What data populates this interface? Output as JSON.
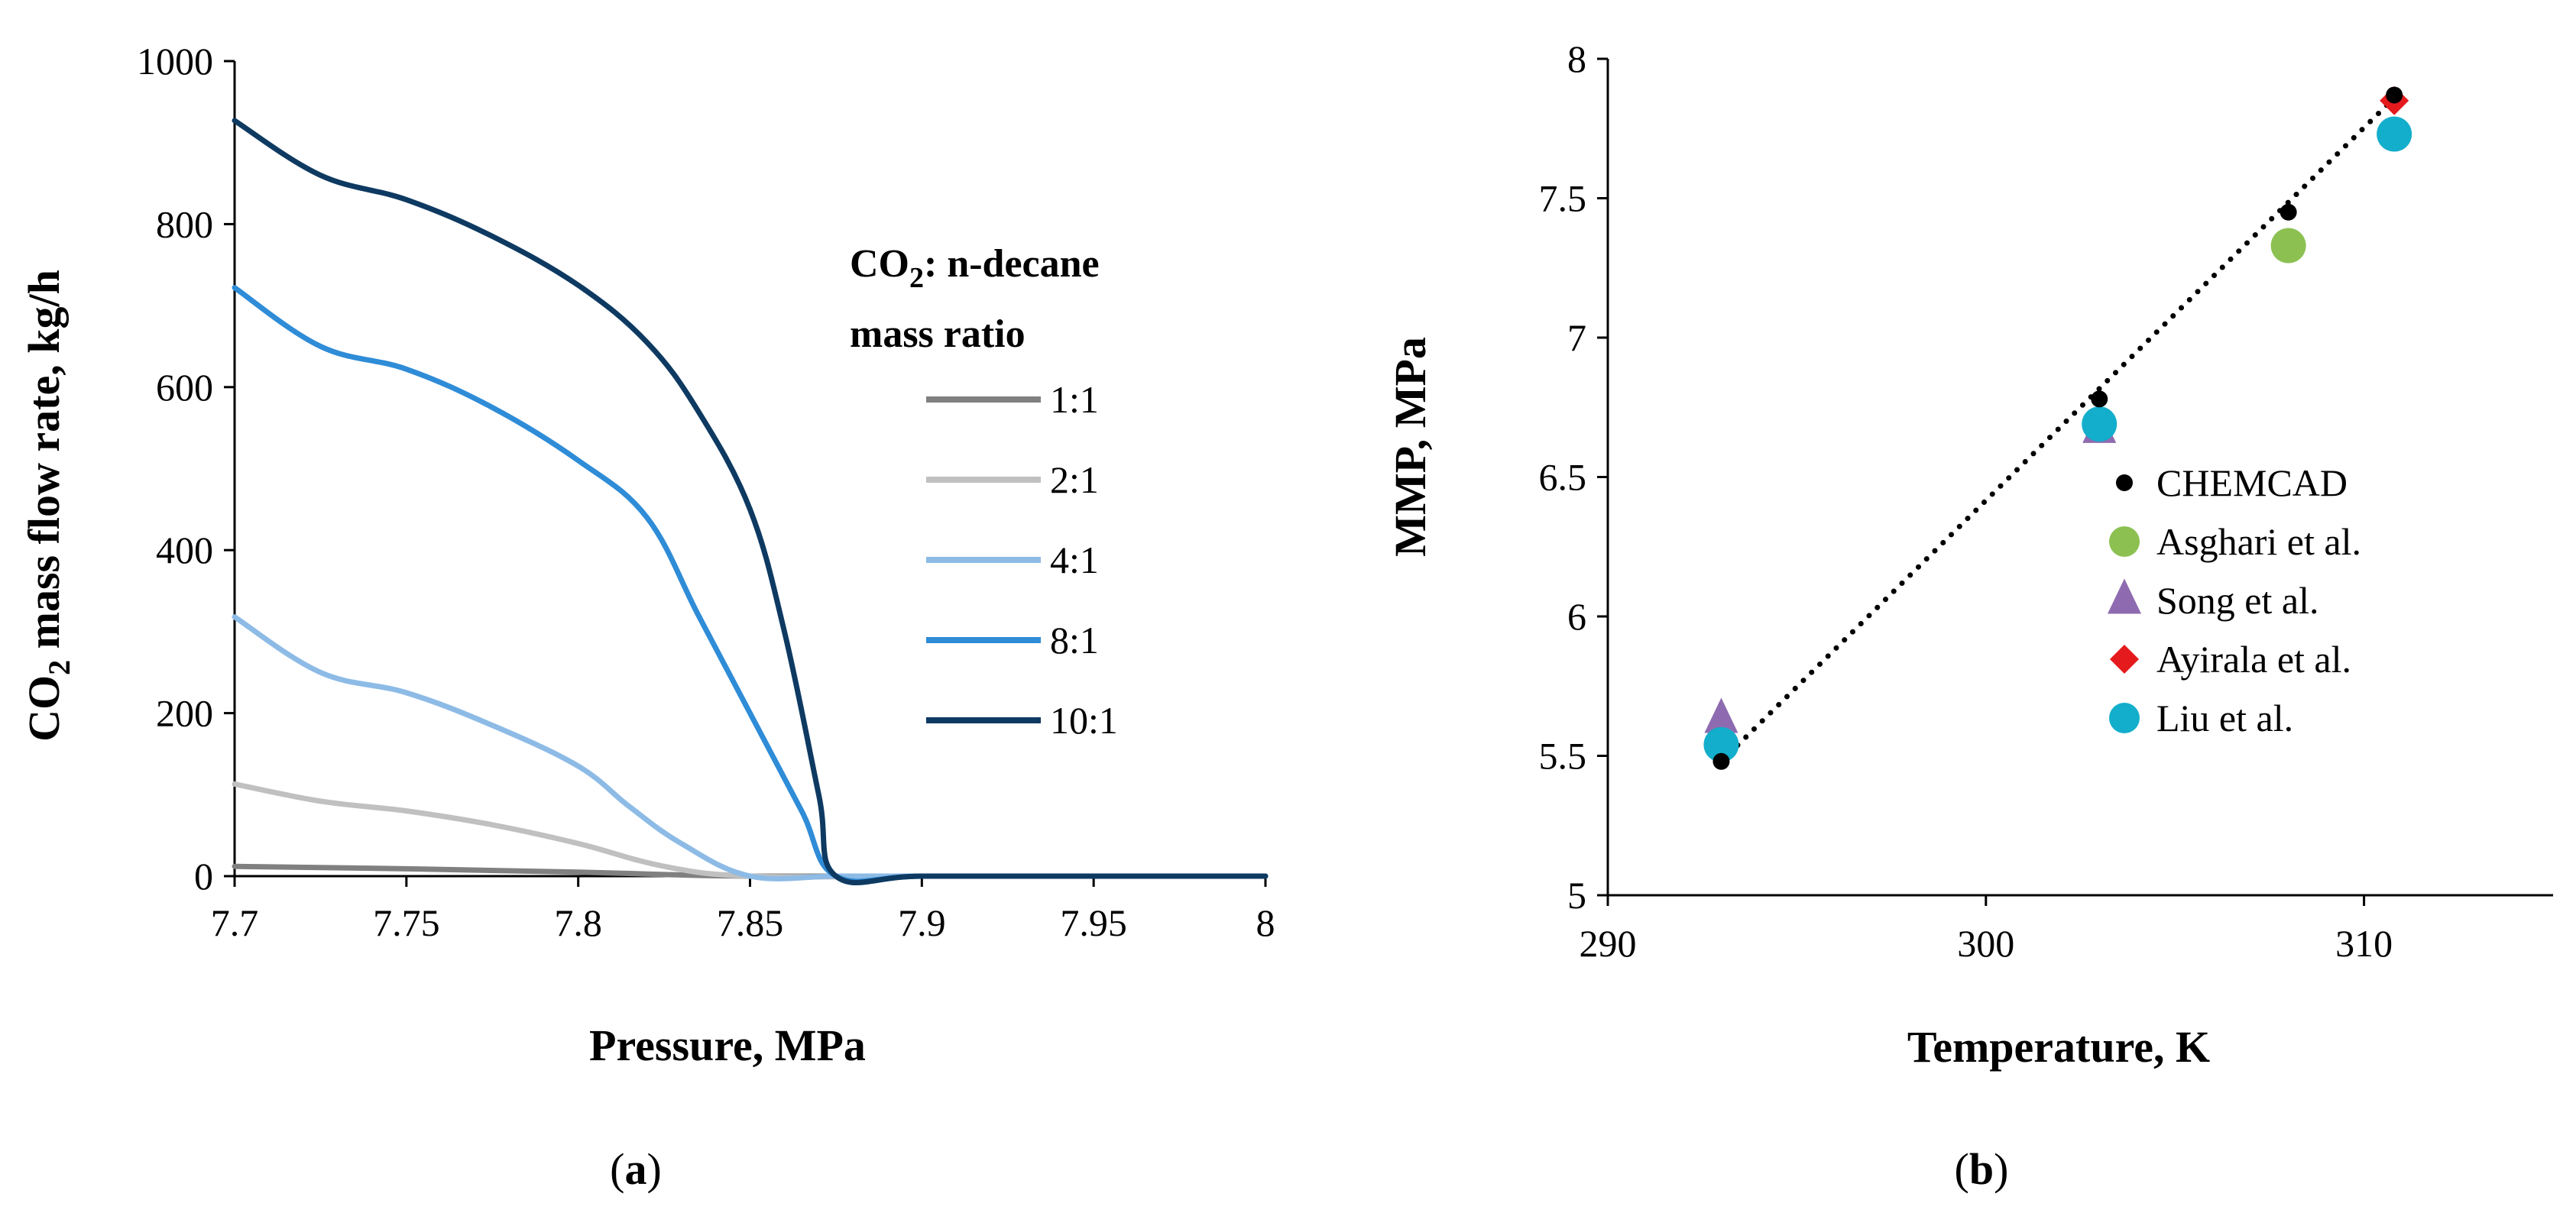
{
  "panels": {
    "a": "a",
    "b": "b"
  },
  "chart_data": [
    {
      "id": "a",
      "type": "line",
      "title": "",
      "xlabel": "Pressure, MPa",
      "ylabel": "CO2 mass flow rate, kg/h",
      "ylabel_parts": [
        "CO",
        "2",
        " mass flow rate, kg/h"
      ],
      "xlim": [
        7.7,
        8
      ],
      "ylim": [
        0,
        1000
      ],
      "xticks": [
        7.7,
        7.75,
        7.8,
        7.85,
        7.9,
        7.95,
        8
      ],
      "xtick_labels": [
        "7.7",
        "7.75",
        "7.8",
        "7.85",
        "7.9",
        "7.95",
        "8"
      ],
      "yticks": [
        0,
        200,
        400,
        600,
        800,
        1000
      ],
      "ytick_labels": [
        "0",
        "200",
        "400",
        "600",
        "800",
        "1000"
      ],
      "legend_title_parts": [
        "CO",
        "2",
        ": n-decane",
        "mass ratio"
      ],
      "legend_position": "right",
      "series": [
        {
          "name": "1:1",
          "color": "#808080",
          "x": [
            7.7,
            7.75,
            7.8,
            7.825,
            7.85,
            7.9,
            7.95,
            8
          ],
          "y": [
            12,
            9,
            5,
            2,
            0,
            0,
            0,
            0
          ]
        },
        {
          "name": "2:1",
          "color": "#c0c0c0",
          "x": [
            7.7,
            7.725,
            7.75,
            7.775,
            7.8,
            7.825,
            7.85,
            7.9,
            7.95,
            8
          ],
          "y": [
            113,
            92,
            80,
            63,
            40,
            12,
            0,
            0,
            0,
            0
          ]
        },
        {
          "name": "4:1",
          "color": "#8dbbe6",
          "x": [
            7.7,
            7.725,
            7.75,
            7.775,
            7.8,
            7.815,
            7.83,
            7.85,
            7.875,
            7.9,
            7.95,
            8
          ],
          "y": [
            318,
            250,
            225,
            185,
            135,
            85,
            40,
            0,
            0,
            0,
            0,
            0
          ]
        },
        {
          "name": "8:1",
          "color": "#2f8cd7",
          "x": [
            7.7,
            7.725,
            7.75,
            7.775,
            7.8,
            7.82,
            7.835,
            7.85,
            7.865,
            7.875,
            7.9,
            7.95,
            8
          ],
          "y": [
            722,
            650,
            622,
            575,
            510,
            440,
            320,
            200,
            80,
            0,
            0,
            0,
            0
          ]
        },
        {
          "name": "10:1",
          "color": "#0e3a62",
          "x": [
            7.7,
            7.725,
            7.75,
            7.775,
            7.8,
            7.82,
            7.835,
            7.85,
            7.86,
            7.87,
            7.875,
            7.9,
            7.95,
            8
          ],
          "y": [
            927,
            860,
            830,
            785,
            725,
            655,
            570,
            450,
            300,
            100,
            0,
            0,
            0,
            0
          ]
        }
      ]
    },
    {
      "id": "b",
      "type": "scatter",
      "title": "",
      "xlabel": "Temperature, K",
      "ylabel": "MMP, MPa",
      "xlim": [
        290,
        315
      ],
      "ylim": [
        5,
        8
      ],
      "xticks": [
        290,
        300,
        310
      ],
      "xtick_labels": [
        "290",
        "300",
        "310"
      ],
      "yticks": [
        5,
        5.5,
        6,
        6.5,
        7,
        7.5,
        8
      ],
      "ytick_labels": [
        "5",
        "5.5",
        "6",
        "6.5",
        "7",
        "7.5",
        "8"
      ],
      "legend_position": "right",
      "trendline": {
        "style": "dotted",
        "color": "#000000",
        "x": [
          293,
          310.8
        ],
        "y": [
          5.48,
          7.86
        ]
      },
      "series": [
        {
          "name": "CHEMCAD",
          "marker": "dot",
          "color": "#000000",
          "x": [
            293,
            303,
            308,
            310.8
          ],
          "y": [
            5.48,
            6.78,
            7.45,
            7.87
          ]
        },
        {
          "name": "Asghari et al.",
          "marker": "circle",
          "color": "#8cc152",
          "x": [
            308
          ],
          "y": [
            7.33
          ]
        },
        {
          "name": "Song et al.",
          "marker": "triangle",
          "color": "#8e6bb0",
          "x": [
            293,
            303
          ],
          "y": [
            5.63,
            6.67
          ]
        },
        {
          "name": "Ayirala et al.",
          "marker": "diamond",
          "color": "#e41a1c",
          "x": [
            310.8
          ],
          "y": [
            7.85
          ]
        },
        {
          "name": "Liu et al.",
          "marker": "circle",
          "color": "#13aecb",
          "x": [
            293,
            303,
            310.8
          ],
          "y": [
            5.54,
            6.69,
            7.73
          ]
        }
      ]
    }
  ]
}
